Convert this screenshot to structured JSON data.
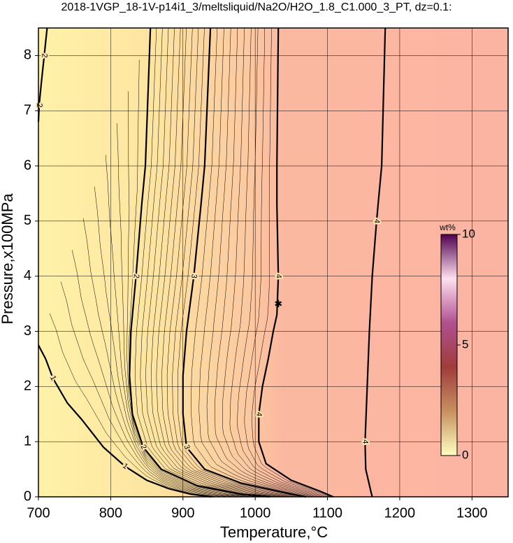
{
  "chart_data": {
    "type": "contour",
    "title": "2018-1VGP_18-1V-p14i1_3/meltsliquid/Na2O/H2O_1.8_C1.000_3_PT, dz=0.1:",
    "xlabel": "Temperature,°C",
    "ylabel": "Pressure,x100MPa",
    "xlim": [
      700,
      1350
    ],
    "ylim": [
      0,
      8.5
    ],
    "xticks": [
      700,
      800,
      900,
      1000,
      1100,
      1200,
      1300
    ],
    "yticks": [
      0,
      1,
      2,
      3,
      4,
      5,
      6,
      7,
      8
    ],
    "grid": true,
    "contours": [
      {
        "level": 1,
        "x": [
          700,
          710,
          720,
          740,
          760,
          790,
          820,
          850,
          880,
          910,
          940
        ],
        "y": [
          2.75,
          2.5,
          2.15,
          1.7,
          1.4,
          0.9,
          0.55,
          0.3,
          0.15,
          0.05,
          0
        ]
      },
      {
        "level": 2,
        "x": [
          855,
          848,
          843,
          835,
          828,
          826,
          830,
          845,
          870,
          920,
          980,
          1020
        ],
        "y": [
          8.5,
          6,
          5.3,
          4,
          3,
          2.2,
          1.5,
          0.9,
          0.5,
          0.2,
          0.05,
          0
        ]
      },
      {
        "level": 2,
        "x": [
          712,
          708,
          704,
          701,
          700
        ],
        "y": [
          8.5,
          8.0,
          7.5,
          7.1,
          6.8
        ]
      },
      {
        "level": 3,
        "x": [
          938,
          930,
          925,
          915,
          905,
          900,
          900,
          905,
          930,
          980,
          1050,
          1070
        ],
        "y": [
          8.5,
          6,
          5.3,
          4,
          3,
          2.2,
          1.5,
          0.9,
          0.5,
          0.25,
          0.05,
          0
        ]
      },
      {
        "level": 4,
        "x": [
          1032,
          1030,
          1030,
          1032,
          1030,
          1025,
          1018,
          1010,
          1005,
          1005,
          1015,
          1050,
          1090,
          1108
        ],
        "y": [
          8.5,
          6,
          5.3,
          4,
          3.3,
          3,
          2.5,
          2,
          1.5,
          1,
          0.6,
          0.3,
          0.1,
          0
        ]
      },
      {
        "level": 4,
        "x": [
          1180,
          1175,
          1168,
          1162,
          1158,
          1155,
          1152,
          1153,
          1160,
          1162
        ],
        "y": [
          8.5,
          6,
          5,
          4,
          3,
          2,
          1,
          0.5,
          0.1,
          0
        ]
      }
    ],
    "marker": {
      "x": 1032,
      "y": 3.5
    },
    "colorbar": {
      "label": "wt%",
      "lim": [
        0,
        10
      ],
      "ticks": [
        0,
        5,
        10
      ],
      "colors": [
        "#ffffc0",
        "#c89060",
        "#a03c3c",
        "#b05090",
        "#ffe0f0",
        "#500050"
      ]
    }
  }
}
